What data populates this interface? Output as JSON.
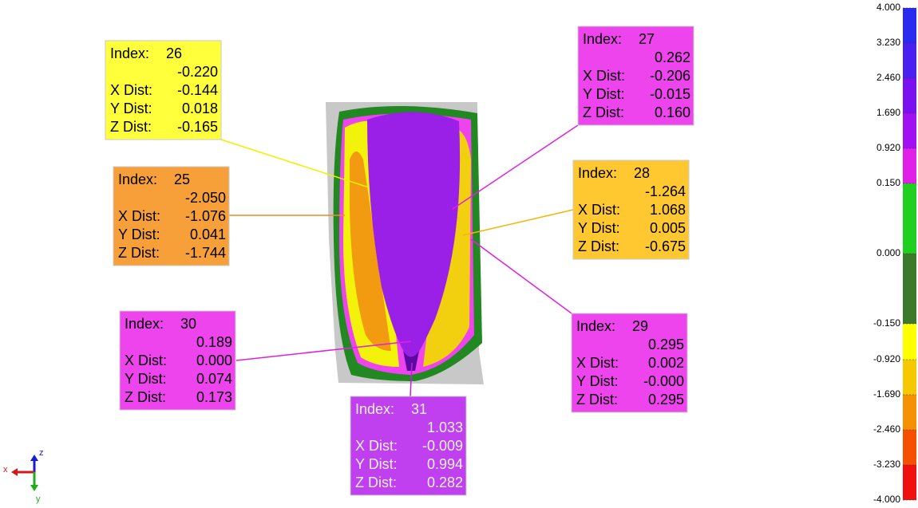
{
  "annotations": [
    {
      "index_label": "Index:",
      "index": "26",
      "value": "-0.220",
      "rows": [
        [
          "X Dist:",
          "-0.144"
        ],
        [
          "Y Dist:",
          "0.018"
        ],
        [
          "Z Dist:",
          "-0.165"
        ]
      ]
    },
    {
      "index_label": "Index:",
      "index": "25",
      "value": "-2.050",
      "rows": [
        [
          "X Dist:",
          "-1.076"
        ],
        [
          "Y Dist:",
          "0.041"
        ],
        [
          "Z Dist:",
          "-1.744"
        ]
      ]
    },
    {
      "index_label": "Index:",
      "index": "27",
      "value": "0.262",
      "rows": [
        [
          "X Dist:",
          "-0.206"
        ],
        [
          "Y Dist:",
          "-0.015"
        ],
        [
          "Z Dist:",
          "0.160"
        ]
      ]
    },
    {
      "index_label": "Index:",
      "index": "28",
      "value": "-1.264",
      "rows": [
        [
          "X Dist:",
          "1.068"
        ],
        [
          "Y Dist:",
          "0.005"
        ],
        [
          "Z Dist:",
          "-0.675"
        ]
      ]
    },
    {
      "index_label": "Index:",
      "index": "29",
      "value": "0.295",
      "rows": [
        [
          "X Dist:",
          "0.002"
        ],
        [
          "Y Dist:",
          "-0.000"
        ],
        [
          "Z Dist:",
          "0.295"
        ]
      ]
    },
    {
      "index_label": "Index:",
      "index": "30",
      "value": "0.189",
      "rows": [
        [
          "X Dist:",
          "0.000"
        ],
        [
          "Y Dist:",
          "0.074"
        ],
        [
          "Z Dist:",
          "0.173"
        ]
      ]
    },
    {
      "index_label": "Index:",
      "index": "31",
      "value": "1.033",
      "rows": [
        [
          "X Dist:",
          "-0.009"
        ],
        [
          "Y Dist:",
          "0.994"
        ],
        [
          "Z Dist:",
          "0.282"
        ]
      ]
    }
  ],
  "colorbar": {
    "labels": [
      "4.000",
      "3.230",
      "2.460",
      "1.690",
      "0.920",
      "0.150",
      "0.000",
      "-0.150",
      "-0.920",
      "-1.690",
      "-2.460",
      "-3.230",
      "-4.000"
    ]
  },
  "axes": {
    "x": "x",
    "y": "y",
    "z": "z"
  }
}
